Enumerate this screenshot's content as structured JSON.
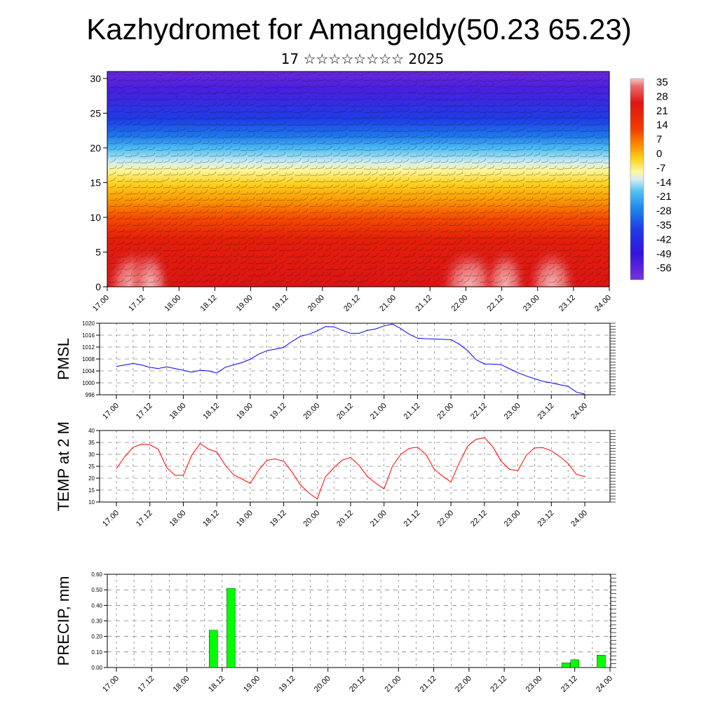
{
  "header": {
    "title": "Kazhydromet for Amangeldy(50.23 65.23)",
    "subtitle": "17 ☆☆☆☆☆☆☆☆ 2025"
  },
  "time_ticks": [
    "17.00",
    "17.12",
    "18.00",
    "18.12",
    "19.00",
    "19.12",
    "20.00",
    "20.12",
    "21.00",
    "21.12",
    "22.00",
    "22.12",
    "23.00",
    "23.12",
    "24.00"
  ],
  "colors": {
    "pmsl_line": "#0000ff",
    "temp_line": "#ff0000",
    "precip_bar": "#00ff00"
  },
  "chart_data": [
    {
      "type": "heatmap",
      "title": "",
      "xlabel": "",
      "ylabel": "",
      "x_ticks": [
        "17.00",
        "17.12",
        "18.00",
        "18.12",
        "19.00",
        "19.12",
        "20.00",
        "20.12",
        "21.00",
        "21.12",
        "22.00",
        "22.12",
        "23.00",
        "23.12",
        "24.00"
      ],
      "y_ticks": [
        0,
        5,
        10,
        15,
        20,
        25,
        30
      ],
      "ylim": [
        0,
        31
      ],
      "xlim": [
        0,
        7
      ],
      "colorbar_labels": [
        "35",
        "28",
        "21",
        "14",
        "7",
        "0",
        "-7",
        "-14",
        "-21",
        "-28",
        "-35",
        "-42",
        "-49",
        "-56"
      ],
      "overlay": "wind barbs"
    },
    {
      "type": "line",
      "title": "",
      "xlabel": "",
      "ylabel": "PMSL",
      "ylim": [
        996,
        1020
      ],
      "y_ticks": [
        996,
        1000,
        1004,
        1008,
        1012,
        1016,
        1020
      ],
      "xlim": [
        0,
        7
      ],
      "x_days": [
        0,
        0.125,
        0.25,
        0.375,
        0.5,
        0.625,
        0.75,
        0.875,
        1,
        1.125,
        1.25,
        1.375,
        1.5,
        1.625,
        1.75,
        1.875,
        2,
        2.125,
        2.25,
        2.375,
        2.5,
        2.625,
        2.75,
        2.875,
        3,
        3.125,
        3.25,
        3.375,
        3.5,
        3.625,
        3.75,
        3.875,
        4,
        4.125,
        4.25,
        4.375,
        4.5,
        4.625,
        4.75,
        4.875,
        5,
        5.125,
        5.25,
        5.375,
        5.5,
        5.625,
        5.75,
        5.875,
        6,
        6.125,
        6.25,
        6.375,
        6.5,
        6.625,
        6.75,
        6.875,
        7
      ],
      "values": [
        1005.5,
        1006,
        1006.5,
        1006,
        1005.2,
        1004.8,
        1005.4,
        1004.8,
        1004.2,
        1003.6,
        1004.2,
        1004,
        1003.3,
        1005.2,
        1006,
        1006.8,
        1007.9,
        1009.6,
        1010.8,
        1011.3,
        1011.9,
        1013.9,
        1015.6,
        1016.3,
        1017.4,
        1018.9,
        1018.8,
        1017.6,
        1016.6,
        1016.6,
        1017.6,
        1018.1,
        1019.1,
        1019.7,
        1018.2,
        1016.3,
        1015,
        1014.8,
        1014.7,
        1014.6,
        1014.5,
        1013,
        1010.8,
        1007.8,
        1006.3,
        1006.3,
        1006.1,
        1004.7,
        1003.4,
        1002.3,
        1001.4,
        1000.5,
        1000,
        999.4,
        998.8,
        996.9,
        996.2
      ]
    },
    {
      "type": "line",
      "title": "",
      "xlabel": "",
      "ylabel": "TEMP at 2 M",
      "ylim": [
        10,
        40
      ],
      "y_ticks": [
        10,
        15,
        20,
        25,
        30,
        35,
        40
      ],
      "xlim": [
        0,
        7
      ],
      "x_days": [
        0,
        0.125,
        0.25,
        0.375,
        0.5,
        0.625,
        0.75,
        0.875,
        1,
        1.125,
        1.25,
        1.375,
        1.5,
        1.625,
        1.75,
        1.875,
        2,
        2.125,
        2.25,
        2.375,
        2.5,
        2.625,
        2.75,
        2.875,
        3,
        3.125,
        3.25,
        3.375,
        3.5,
        3.625,
        3.75,
        3.875,
        4,
        4.125,
        4.25,
        4.375,
        4.5,
        4.625,
        4.75,
        4.875,
        5,
        5.125,
        5.25,
        5.375,
        5.5,
        5.625,
        5.75,
        5.875,
        6,
        6.125,
        6.25,
        6.375,
        6.5,
        6.625,
        6.75,
        6.875,
        7
      ],
      "values": [
        24,
        29,
        33,
        34.3,
        34,
        32.2,
        24.5,
        21.2,
        21.2,
        29.6,
        34.5,
        32.2,
        31,
        25.5,
        21.5,
        19.7,
        17.8,
        23.4,
        27.5,
        28.1,
        27.1,
        22.6,
        17.2,
        13.8,
        11.3,
        20.6,
        24.4,
        27.6,
        28.7,
        25.4,
        20.7,
        17.9,
        15.5,
        25,
        30,
        32.5,
        33,
        30,
        23.8,
        20.8,
        18.4,
        26.5,
        33.5,
        36.3,
        37,
        33.2,
        27.1,
        23.7,
        23.2,
        29.6,
        32.7,
        32.8,
        31.5,
        29.1,
        26.2,
        21.6,
        20.7
      ]
    },
    {
      "type": "bar",
      "title": "",
      "xlabel": "",
      "ylabel": "PRECIP, mm",
      "ylim": [
        0,
        0.6
      ],
      "y_ticks": [
        "0.00",
        "0.10",
        "0.20",
        "0.30",
        "0.40",
        "0.50",
        "0.60"
      ],
      "xlim": [
        0,
        7
      ],
      "x_days": [
        1.375,
        1.625,
        6.375,
        6.5,
        6.875
      ],
      "values": [
        0.24,
        0.51,
        0.03,
        0.05,
        0.08
      ]
    }
  ]
}
